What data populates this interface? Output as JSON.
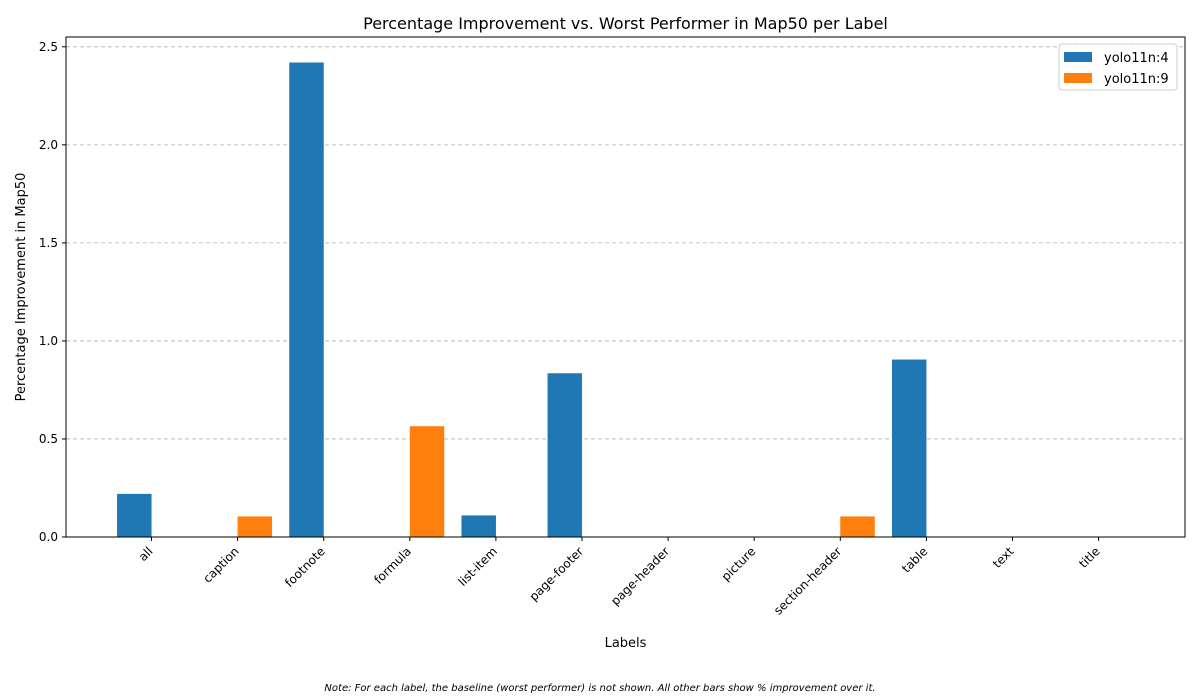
{
  "chart_data": {
    "type": "bar",
    "title": "Percentage Improvement vs. Worst Performer in Map50 per Label",
    "xlabel": "Labels",
    "ylabel": "Percentage Improvement in Map50",
    "ylim": [
      0,
      2.55
    ],
    "yticks": [
      "0.0",
      "0.5",
      "1.0",
      "1.5",
      "2.0",
      "2.5"
    ],
    "grid": "y-dashed",
    "legend_position": "top-right",
    "categories": [
      "all",
      "caption",
      "footnote",
      "formula",
      "list-item",
      "page-footer",
      "page-header",
      "picture",
      "section-header",
      "table",
      "text",
      "title"
    ],
    "series": [
      {
        "name": "yolo11n:4",
        "color": "#1f77b4",
        "values": [
          0.22,
          null,
          2.42,
          null,
          0.11,
          0.835,
          null,
          null,
          null,
          0.905,
          null,
          null
        ]
      },
      {
        "name": "yolo11n:9",
        "color": "#ff7f0e",
        "values": [
          null,
          0.105,
          null,
          0.565,
          null,
          null,
          null,
          null,
          0.105,
          null,
          null,
          null
        ]
      }
    ]
  },
  "footnote": "Note: For each label, the baseline (worst performer) is not shown. All other bars show % improvement over it."
}
